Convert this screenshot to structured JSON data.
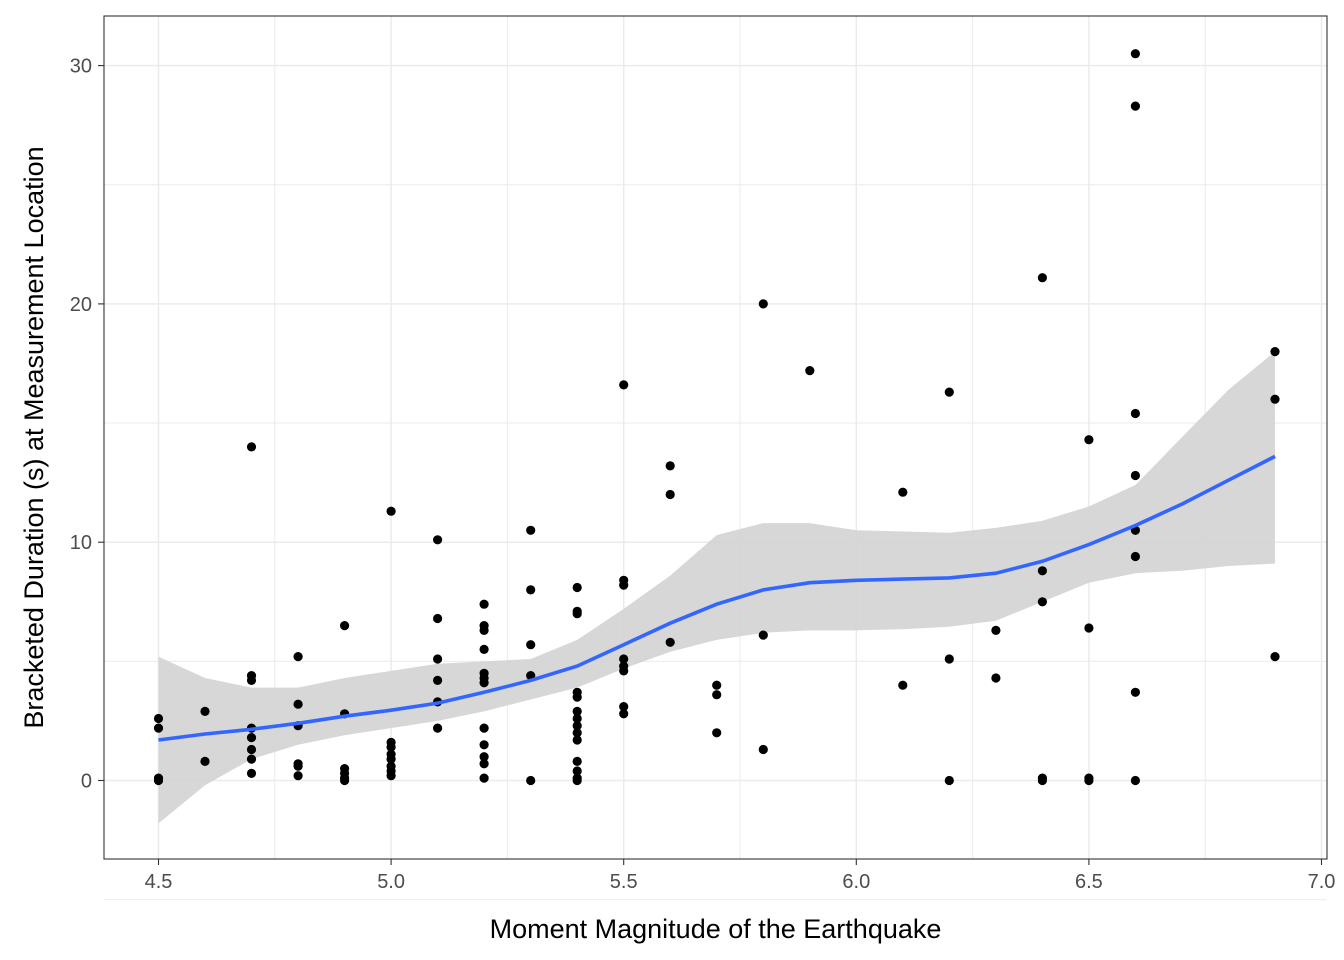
{
  "chart_data": {
    "type": "scatter",
    "title": "",
    "xlabel": "Moment Magnitude of the Earthquake",
    "ylabel": "Bracketed Duration (s) at Measurement Location",
    "xlim": [
      4.38,
      7.0
    ],
    "ylim": [
      -3.4,
      32.0
    ],
    "x_ticks": [
      4.5,
      5.0,
      5.5,
      6.0,
      6.5,
      7.0
    ],
    "x_tick_labels": [
      "4.5",
      "5.0",
      "5.5",
      "6.0",
      "6.5",
      "7.0"
    ],
    "y_ticks": [
      0,
      10,
      20,
      30
    ],
    "y_tick_labels": [
      "0",
      "10",
      "20",
      "30"
    ],
    "grid": true,
    "legend": "none",
    "colors": {
      "points": "#000000",
      "smooth_line": "#3366ff",
      "confidence_band": "#d3d3d3",
      "panel_border": "#333333",
      "grid_major": "#ebebeb"
    },
    "series": [
      {
        "type": "scatter",
        "points": [
          [
            4.5,
            2.6
          ],
          [
            4.5,
            2.2
          ],
          [
            4.5,
            0.1
          ],
          [
            4.5,
            0.0
          ],
          [
            4.6,
            2.9
          ],
          [
            4.6,
            0.8
          ],
          [
            4.7,
            14.0
          ],
          [
            4.7,
            4.4
          ],
          [
            4.7,
            4.2
          ],
          [
            4.7,
            2.2
          ],
          [
            4.7,
            1.8
          ],
          [
            4.7,
            1.3
          ],
          [
            4.7,
            0.9
          ],
          [
            4.7,
            0.3
          ],
          [
            4.8,
            5.2
          ],
          [
            4.8,
            3.2
          ],
          [
            4.8,
            2.3
          ],
          [
            4.8,
            0.7
          ],
          [
            4.8,
            0.6
          ],
          [
            4.8,
            0.2
          ],
          [
            4.9,
            6.5
          ],
          [
            4.9,
            2.8
          ],
          [
            4.9,
            0.5
          ],
          [
            4.9,
            0.3
          ],
          [
            4.9,
            0.1
          ],
          [
            4.9,
            0.0
          ],
          [
            5.0,
            11.3
          ],
          [
            5.0,
            1.6
          ],
          [
            5.0,
            1.4
          ],
          [
            5.0,
            1.1
          ],
          [
            5.0,
            0.9
          ],
          [
            5.0,
            0.6
          ],
          [
            5.0,
            0.4
          ],
          [
            5.0,
            0.2
          ],
          [
            5.1,
            10.1
          ],
          [
            5.1,
            6.8
          ],
          [
            5.1,
            5.1
          ],
          [
            5.1,
            4.2
          ],
          [
            5.1,
            3.3
          ],
          [
            5.1,
            2.2
          ],
          [
            5.2,
            7.4
          ],
          [
            5.2,
            6.5
          ],
          [
            5.2,
            6.3
          ],
          [
            5.2,
            5.5
          ],
          [
            5.2,
            4.5
          ],
          [
            5.2,
            4.3
          ],
          [
            5.2,
            4.1
          ],
          [
            5.2,
            2.2
          ],
          [
            5.2,
            1.5
          ],
          [
            5.2,
            1.0
          ],
          [
            5.2,
            0.7
          ],
          [
            5.2,
            0.1
          ],
          [
            5.3,
            10.5
          ],
          [
            5.3,
            8.0
          ],
          [
            5.3,
            5.7
          ],
          [
            5.3,
            4.4
          ],
          [
            5.3,
            0.0
          ],
          [
            5.4,
            8.1
          ],
          [
            5.4,
            7.1
          ],
          [
            5.4,
            7.0
          ],
          [
            5.4,
            3.7
          ],
          [
            5.4,
            3.5
          ],
          [
            5.4,
            2.9
          ],
          [
            5.4,
            2.6
          ],
          [
            5.4,
            2.3
          ],
          [
            5.4,
            2.0
          ],
          [
            5.4,
            1.7
          ],
          [
            5.4,
            0.8
          ],
          [
            5.4,
            0.4
          ],
          [
            5.4,
            0.1
          ],
          [
            5.4,
            0.0
          ],
          [
            5.5,
            16.6
          ],
          [
            5.5,
            8.4
          ],
          [
            5.5,
            8.2
          ],
          [
            5.5,
            5.1
          ],
          [
            5.5,
            4.8
          ],
          [
            5.5,
            4.6
          ],
          [
            5.5,
            3.1
          ],
          [
            5.5,
            2.8
          ],
          [
            5.6,
            13.2
          ],
          [
            5.6,
            12.0
          ],
          [
            5.6,
            5.8
          ],
          [
            5.7,
            4.0
          ],
          [
            5.7,
            3.6
          ],
          [
            5.7,
            2.0
          ],
          [
            5.8,
            20.0
          ],
          [
            5.8,
            6.1
          ],
          [
            5.8,
            1.3
          ],
          [
            5.9,
            17.2
          ],
          [
            6.1,
            12.1
          ],
          [
            6.1,
            4.0
          ],
          [
            6.2,
            16.3
          ],
          [
            6.2,
            5.1
          ],
          [
            6.2,
            0.0
          ],
          [
            6.3,
            6.3
          ],
          [
            6.3,
            4.3
          ],
          [
            6.4,
            21.1
          ],
          [
            6.4,
            8.8
          ],
          [
            6.4,
            7.5
          ],
          [
            6.4,
            0.1
          ],
          [
            6.4,
            0.0
          ],
          [
            6.5,
            14.3
          ],
          [
            6.5,
            6.4
          ],
          [
            6.5,
            0.1
          ],
          [
            6.5,
            0.0
          ],
          [
            6.6,
            30.5
          ],
          [
            6.6,
            28.3
          ],
          [
            6.6,
            15.4
          ],
          [
            6.6,
            12.8
          ],
          [
            6.6,
            10.5
          ],
          [
            6.6,
            9.4
          ],
          [
            6.6,
            3.7
          ],
          [
            6.6,
            0.0
          ],
          [
            6.9,
            18.0
          ],
          [
            6.9,
            16.0
          ],
          [
            6.9,
            5.2
          ]
        ]
      },
      {
        "type": "smooth",
        "x": [
          4.5,
          4.6,
          4.7,
          4.8,
          4.9,
          5.0,
          5.1,
          5.2,
          5.3,
          5.4,
          5.5,
          5.6,
          5.7,
          5.8,
          5.9,
          6.0,
          6.1,
          6.2,
          6.3,
          6.4,
          6.5,
          6.6,
          6.7,
          6.8,
          6.9
        ],
        "y": [
          1.7,
          1.95,
          2.15,
          2.4,
          2.7,
          2.95,
          3.25,
          3.7,
          4.2,
          4.8,
          5.7,
          6.6,
          7.4,
          8.0,
          8.3,
          8.4,
          8.45,
          8.5,
          8.7,
          9.2,
          9.9,
          10.7,
          11.6,
          12.6,
          13.6
        ],
        "lower": [
          -1.8,
          -0.2,
          0.9,
          1.5,
          1.9,
          2.2,
          2.5,
          2.9,
          3.4,
          3.9,
          4.7,
          5.4,
          5.9,
          6.2,
          6.3,
          6.3,
          6.35,
          6.45,
          6.7,
          7.5,
          8.3,
          8.7,
          8.8,
          9.0,
          9.1
        ],
        "upper": [
          5.2,
          4.3,
          3.9,
          3.9,
          4.3,
          4.6,
          4.9,
          5.0,
          5.1,
          5.9,
          7.2,
          8.6,
          10.3,
          10.8,
          10.8,
          10.5,
          10.45,
          10.4,
          10.6,
          10.9,
          11.5,
          12.4,
          14.4,
          16.4,
          18.0
        ]
      }
    ]
  }
}
